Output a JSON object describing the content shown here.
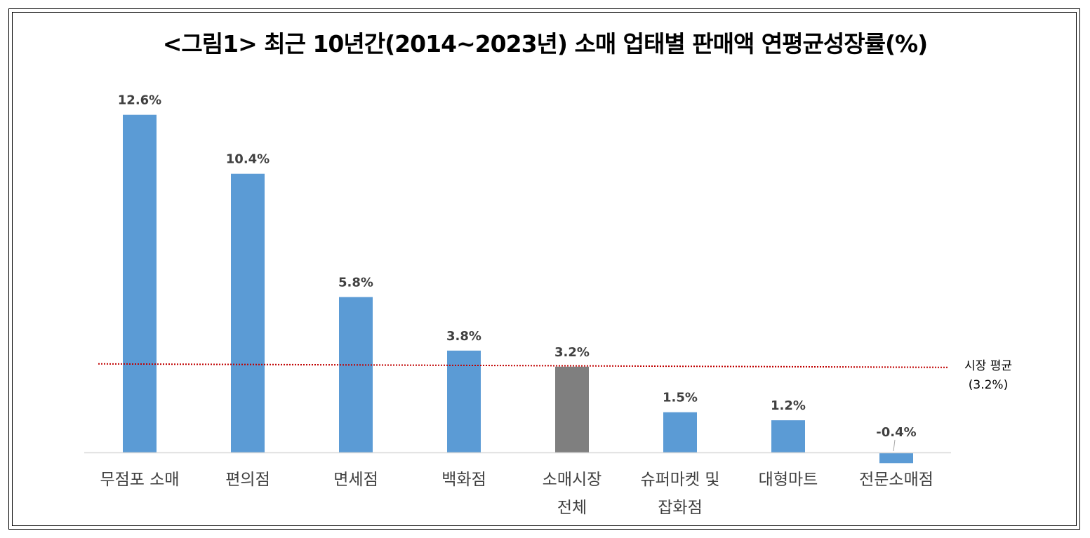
{
  "title": "<그림1> 최근 10년간(2014~2023년) 소매 업태별 판매액 연평균성장률(%)",
  "colors": {
    "bar": "#5b9bd5",
    "highlight_bar": "#7f7f7f",
    "reference_line": "#c00000",
    "axis": "#d9d9d9"
  },
  "chart_data": {
    "type": "bar",
    "title": "<그림1> 최근 10년간(2014~2023년) 소매 업태별 판매액 연평균성장률(%)",
    "categories": [
      [
        "무점포 소매"
      ],
      [
        "편의점"
      ],
      [
        "면세점"
      ],
      [
        "백화점"
      ],
      [
        "소매시장",
        "전체"
      ],
      [
        "슈퍼마켓 및",
        "잡화점"
      ],
      [
        "대형마트"
      ],
      [
        "전문소매점"
      ]
    ],
    "values": [
      12.6,
      10.4,
      5.8,
      3.8,
      3.2,
      1.5,
      1.2,
      -0.4
    ],
    "data_labels": [
      "12.6%",
      "10.4%",
      "5.8%",
      "3.8%",
      "3.2%",
      "1.5%",
      "1.2%",
      "-0.4%"
    ],
    "highlight_index": 4,
    "reference_line": {
      "value": 3.2,
      "label": [
        "시장 평균",
        "(3.2%)"
      ]
    },
    "ylim": [
      -0.4,
      12.6
    ],
    "xlabel": "",
    "ylabel": "",
    "grid": false,
    "legend": "none"
  }
}
